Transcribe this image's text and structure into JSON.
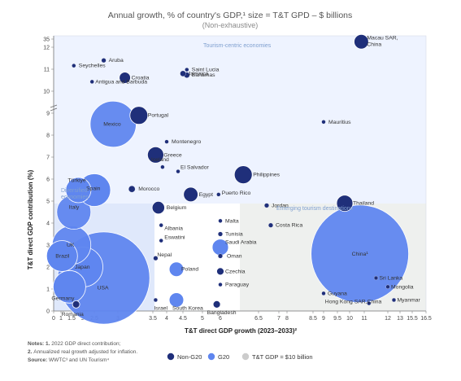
{
  "chart_data": {
    "type": "scatter",
    "title": "Annual growth, % of country's GDP,¹ size = T&T GPD – $ billions",
    "subtitle": "(Non-exhaustive)",
    "xlabel": "T&T direct GDP growth (2023–2033)²",
    "ylabel": "T&T direct GDP contribution (%)",
    "x_ticks": [
      "0",
      "1",
      "1.5",
      "2",
      "2.5",
      "3",
      "3.5",
      "4",
      "4.5",
      "5",
      "6",
      "6.5",
      "7",
      "8",
      "8.5",
      "9",
      "9.5",
      "10",
      "11",
      "12",
      "13",
      "15.5",
      "16.5"
    ],
    "y_ticks": [
      "0",
      "1",
      "2",
      "3",
      "4",
      "5",
      "6",
      "7",
      "8",
      "9",
      "10",
      "11",
      "12",
      "35"
    ],
    "regions": [
      {
        "label": "Tourism-centric economies"
      },
      {
        "label": "Diversified economies"
      },
      {
        "label": "Emerging tourism destinations"
      }
    ],
    "notes": [
      {
        "bold": "Notes: 1.",
        "text": "2022 GDP direct contribution;"
      },
      {
        "bold": "2.",
        "text": "Annualized real growth adjusted for inflation."
      },
      {
        "bold": "Source:",
        "text": "WWTC³ and UN Tourism⁴"
      }
    ],
    "legend": [
      {
        "label": "Non-G20",
        "color": "#1f2f7a"
      },
      {
        "label": "G20",
        "color": "#5f86ef"
      },
      {
        "label": "T&T GDP = $10 billion",
        "color": "#cccccc"
      }
    ],
    "colors": {
      "non_g20": "#1f2f7a",
      "g20": "#5f86ef",
      "bubble_stroke": "#ffffff"
    },
    "points": [
      {
        "label": "Macau SAR, China",
        "x": 10.8,
        "y": 34,
        "group": "non-g20",
        "size": 20
      },
      {
        "label": "Aruba",
        "x": 2.7,
        "y": 27,
        "group": "non-g20",
        "size": 2
      },
      {
        "label": "Seychelles",
        "x": 1.6,
        "y": 25,
        "group": "non-g20",
        "size": 1
      },
      {
        "label": "Saint Lucia",
        "x": 4.6,
        "y": 23.5,
        "group": "non-g20",
        "size": 1
      },
      {
        "label": "Bahamas",
        "x": 4.6,
        "y": 21.5,
        "group": "non-g20",
        "size": 3
      },
      {
        "label": "Croatia",
        "x": 3.1,
        "y": 20.5,
        "group": "non-g20",
        "size": 12
      },
      {
        "label": "Antigua and Barbuda",
        "x": 2.4,
        "y": 19,
        "group": "non-g20",
        "size": 1
      },
      {
        "label": "Jamaica",
        "x": 4.5,
        "y": 10.8,
        "group": "non-g20",
        "size": 3
      },
      {
        "label": "Mauritius",
        "x": 9.0,
        "y": 8.6,
        "group": "non-g20",
        "size": 1
      },
      {
        "label": "Portugal",
        "x": 3.3,
        "y": 8.9,
        "group": "non-g20",
        "size": 30
      },
      {
        "label": "Mexico",
        "x": 2.9,
        "y": 8.5,
        "group": "g20",
        "size": 200
      },
      {
        "label": "Montenegro",
        "x": 4.0,
        "y": 7.7,
        "group": "non-g20",
        "size": 1
      },
      {
        "label": "Greece",
        "x": 3.6,
        "y": 7.1,
        "group": "non-g20",
        "size": 25
      },
      {
        "label": "Iceland",
        "x": 3.85,
        "y": 6.55,
        "group": "non-g20",
        "size": 1
      },
      {
        "label": "El Salvador",
        "x": 4.35,
        "y": 6.35,
        "group": "non-g20",
        "size": 1
      },
      {
        "label": "Philippines",
        "x": 6.3,
        "y": 6.2,
        "group": "non-g20",
        "size": 30
      },
      {
        "label": "Spain",
        "x": 2.5,
        "y": 5.5,
        "group": "g20",
        "size": 100
      },
      {
        "label": "Morocco",
        "x": 3.2,
        "y": 5.55,
        "group": "non-g20",
        "size": 4
      },
      {
        "label": "Egypt",
        "x": 4.7,
        "y": 5.3,
        "group": "non-g20",
        "size": 20
      },
      {
        "label": "Türkiye",
        "x": 1.8,
        "y": 5.5,
        "group": "g20",
        "size": 60
      },
      {
        "label": "Puerto Rico",
        "x": 5.9,
        "y": 5.3,
        "group": "non-g20",
        "size": 1
      },
      {
        "label": "Jordan",
        "x": 6.7,
        "y": 4.8,
        "group": "non-g20",
        "size": 2
      },
      {
        "label": "Thailand",
        "x": 9.8,
        "y": 4.9,
        "group": "non-g20",
        "size": 25
      },
      {
        "label": "Italy",
        "x": 1.6,
        "y": 4.5,
        "group": "g20",
        "size": 110
      },
      {
        "label": "Belgium",
        "x": 3.7,
        "y": 4.7,
        "group": "non-g20",
        "size": 15
      },
      {
        "label": "Malta",
        "x": 6.0,
        "y": 4.1,
        "group": "non-g20",
        "size": 1
      },
      {
        "label": "Costa Rica",
        "x": 6.8,
        "y": 3.9,
        "group": "non-g20",
        "size": 2
      },
      {
        "label": "Albania",
        "x": 3.8,
        "y": 3.9,
        "group": "non-g20",
        "size": 1
      },
      {
        "label": "UK",
        "x": 1.5,
        "y": 3.0,
        "group": "g20",
        "size": 140
      },
      {
        "label": "Tunisia",
        "x": 6.0,
        "y": 3.5,
        "group": "non-g20",
        "size": 2
      },
      {
        "label": "Eswatini",
        "x": 3.8,
        "y": 3.2,
        "group": "non-g20",
        "size": 1
      },
      {
        "label": "China¹",
        "x": 10.7,
        "y": 2.6,
        "group": "g20",
        "size": 900
      },
      {
        "label": "Saudi Arabia",
        "x": 6.0,
        "y": 2.9,
        "group": "g20",
        "size": 25
      },
      {
        "label": "Nepal",
        "x": 3.6,
        "y": 2.4,
        "group": "non-g20",
        "size": 2
      },
      {
        "label": "Oman",
        "x": 6.0,
        "y": 2.5,
        "group": "non-g20",
        "size": 2
      },
      {
        "label": "Brazil",
        "x": 1.05,
        "y": 2.5,
        "group": "g20",
        "size": 90
      },
      {
        "label": "Japan",
        "x": 2.0,
        "y": 2.0,
        "group": "g20",
        "size": 150
      },
      {
        "label": "Poland",
        "x": 4.3,
        "y": 1.9,
        "group": "g20",
        "size": 20
      },
      {
        "label": "Czechia",
        "x": 6.0,
        "y": 1.8,
        "group": "non-g20",
        "size": 5
      },
      {
        "label": "Sri Lanka",
        "x": 11.5,
        "y": 1.5,
        "group": "non-g20",
        "size": 1
      },
      {
        "label": "USA",
        "x": 2.7,
        "y": 1.5,
        "group": "g20",
        "size": 800
      },
      {
        "label": "Paraguay",
        "x": 6.0,
        "y": 1.2,
        "group": "non-g20",
        "size": 1
      },
      {
        "label": "Mongolia",
        "x": 12.0,
        "y": 1.1,
        "group": "non-g20",
        "size": 1
      },
      {
        "label": "Guyana",
        "x": 9.0,
        "y": 0.8,
        "group": "non-g20",
        "size": 1
      },
      {
        "label": "Myanmar",
        "x": 12.5,
        "y": 0.5,
        "group": "non-g20",
        "size": 1
      },
      {
        "label": "Hong Kong SAR,China",
        "x": 11.2,
        "y": 0.35,
        "group": "non-g20",
        "size": 1
      },
      {
        "label": "Germany",
        "x": 1.4,
        "y": 1.1,
        "group": "g20",
        "size": 100
      },
      {
        "label": "Israel",
        "x": 3.6,
        "y": 0.5,
        "group": "non-g20",
        "size": 1
      },
      {
        "label": "South Korea",
        "x": 4.3,
        "y": 0.5,
        "group": "g20",
        "size": 20
      },
      {
        "label": "Bangladesh",
        "x": 5.8,
        "y": 0.3,
        "group": "non-g20",
        "size": 5
      },
      {
        "label": "Romania",
        "x": 1.7,
        "y": 0.3,
        "group": "non-g20",
        "size": 5
      }
    ]
  }
}
